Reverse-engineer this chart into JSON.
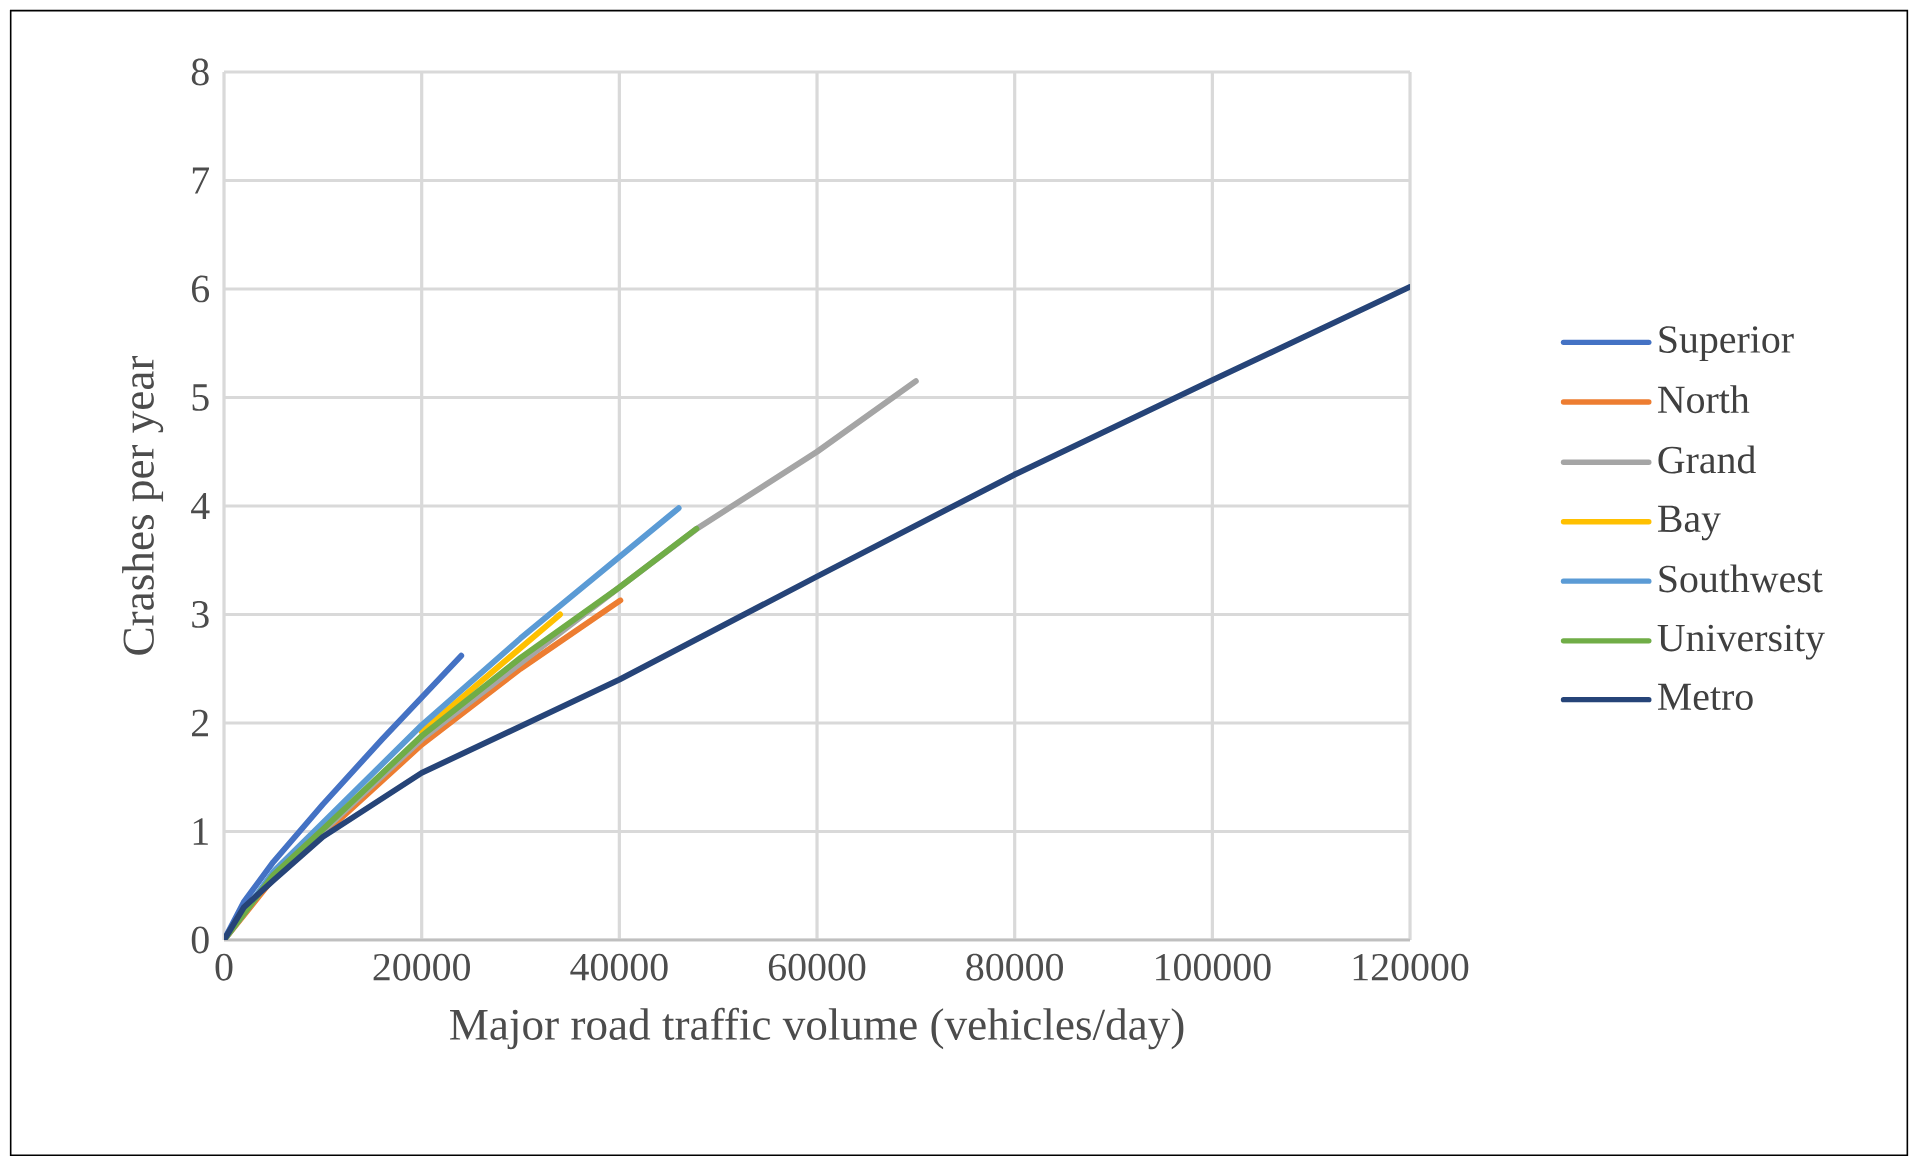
{
  "chart_data": {
    "type": "line",
    "xlabel": "Major road traffic volume (vehicles/day)",
    "ylabel": "Crashes per year",
    "xlim": [
      0,
      120000
    ],
    "ylim": [
      0,
      8
    ],
    "xticks": [
      0,
      20000,
      40000,
      60000,
      80000,
      100000,
      120000
    ],
    "yticks": [
      0,
      1,
      2,
      3,
      4,
      5,
      6,
      7,
      8
    ],
    "grid": true,
    "legend": "right",
    "marker": "none",
    "line_style": "solid",
    "series": [
      {
        "name": "Superior",
        "color": "#4472c4",
        "x": [
          0,
          2000,
          5000,
          10000,
          16000,
          24000
        ],
        "values": [
          0,
          0.35,
          0.72,
          1.25,
          1.85,
          2.62
        ]
      },
      {
        "name": "North",
        "color": "#ed7d31",
        "x": [
          0,
          5000,
          10000,
          20000,
          30000,
          40100
        ],
        "values": [
          0,
          0.57,
          0.97,
          1.8,
          2.5,
          3.13
        ]
      },
      {
        "name": "Grand",
        "color": "#a5a5a5",
        "x": [
          0,
          5000,
          10000,
          20000,
          40000,
          48000,
          60000,
          70000
        ],
        "values": [
          0,
          0.6,
          1.0,
          1.85,
          3.25,
          3.8,
          4.5,
          5.15
        ]
      },
      {
        "name": "Bay",
        "color": "#ffc000",
        "x": [
          20000,
          34000
        ],
        "values": [
          1.92,
          3.0
        ]
      },
      {
        "name": "Southwest",
        "color": "#5b9bd5",
        "x": [
          0,
          5000,
          10000,
          20000,
          30000,
          46000
        ],
        "values": [
          0,
          0.63,
          1.08,
          1.98,
          2.78,
          3.98
        ]
      },
      {
        "name": "University",
        "color": "#70ad47",
        "x": [
          0,
          5000,
          10000,
          20000,
          30000,
          40000,
          47800
        ],
        "values": [
          0,
          0.6,
          1.02,
          1.88,
          2.6,
          3.25,
          3.79
        ]
      },
      {
        "name": "Metro",
        "color": "#264478",
        "x": [
          0,
          2000,
          5000,
          10000,
          20000,
          40000,
          60000,
          80000,
          100000,
          120000
        ],
        "values": [
          0,
          0.3,
          0.55,
          0.95,
          1.54,
          2.4,
          3.35,
          4.29,
          5.16,
          6.02
        ]
      }
    ]
  }
}
